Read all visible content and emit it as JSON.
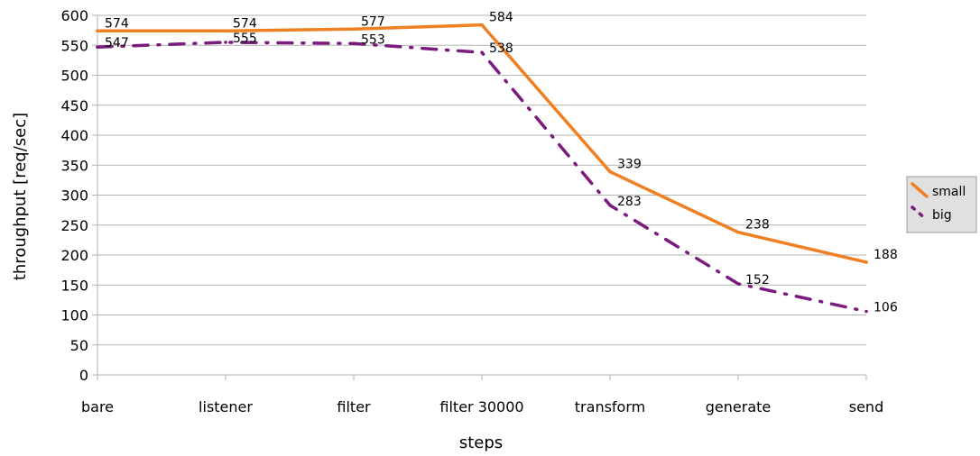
{
  "chart_data": {
    "type": "line",
    "title": "",
    "xlabel": "steps",
    "ylabel": "throughput [req/sec]",
    "ylim": [
      0,
      600
    ],
    "yticks": [
      0,
      50,
      100,
      150,
      200,
      250,
      300,
      350,
      400,
      450,
      500,
      550,
      600
    ],
    "grid": true,
    "legend_position": "right",
    "categories": [
      "bare",
      "listener",
      "filter",
      "filter 30000",
      "transform",
      "generate",
      "send"
    ],
    "series": [
      {
        "name": "small",
        "values": [
          574,
          574,
          577,
          584,
          339,
          238,
          188
        ],
        "labels": [
          "574",
          "574",
          "577",
          "584",
          "339",
          "238",
          "188"
        ],
        "color": "#f07f22",
        "style": "solid"
      },
      {
        "name": "big",
        "values": [
          547,
          555,
          553,
          538,
          283,
          152,
          106
        ],
        "labels": [
          "547",
          "555",
          "553",
          "538",
          "283",
          "152",
          "106"
        ],
        "color": "#7b1b7e",
        "style": "dash-dot"
      }
    ]
  }
}
